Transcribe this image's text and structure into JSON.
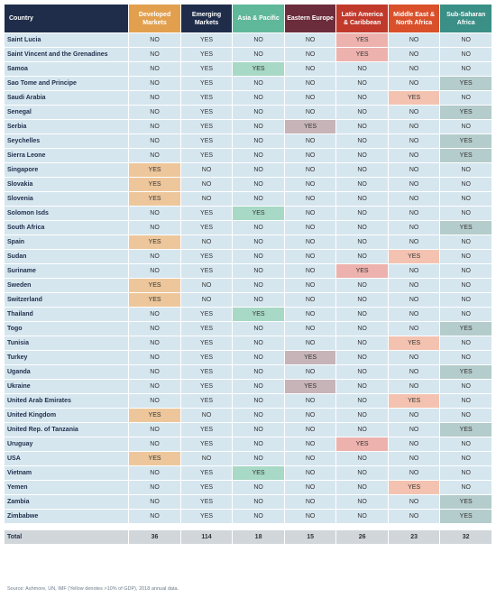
{
  "columns": [
    {
      "label": "Country",
      "bg": "#1f2d4a",
      "yes_color": null
    },
    {
      "label": "Developed Markets",
      "bg": "#e2a04f",
      "yes_color": "#edc79b"
    },
    {
      "label": "Emerging Markets",
      "bg": "#1f2d4a",
      "yes_color": null
    },
    {
      "label": "Asia & Pacific",
      "bg": "#5fb89a",
      "yes_color": "#a8d8c6"
    },
    {
      "label": "Eastern Europe",
      "bg": "#6b2c3b",
      "yes_color": "#c6b4b8"
    },
    {
      "label": "Latin America & Caribbean",
      "bg": "#c0392b",
      "yes_color": "#edb2ad"
    },
    {
      "label": "Middle East & North Africa",
      "bg": "#d9502b",
      "yes_color": "#f4c2b0"
    },
    {
      "label": "Sub-Saharan Africa",
      "bg": "#3a8f86",
      "yes_color": "#b4cccb"
    }
  ],
  "rows": [
    {
      "country": "Saint Lucia",
      "values": [
        "NO",
        "YES",
        "NO",
        "NO",
        "YES",
        "NO",
        "NO"
      ]
    },
    {
      "country": "Saint Vincent and the Grenadines",
      "values": [
        "NO",
        "YES",
        "NO",
        "NO",
        "YES",
        "NO",
        "NO"
      ]
    },
    {
      "country": "Samoa",
      "values": [
        "NO",
        "YES",
        "YES",
        "NO",
        "NO",
        "NO",
        "NO"
      ]
    },
    {
      "country": "Sao Tome and Principe",
      "values": [
        "NO",
        "YES",
        "NO",
        "NO",
        "NO",
        "NO",
        "YES"
      ]
    },
    {
      "country": "Saudi Arabia",
      "values": [
        "NO",
        "YES",
        "NO",
        "NO",
        "NO",
        "YES",
        "NO"
      ]
    },
    {
      "country": "Senegal",
      "values": [
        "NO",
        "YES",
        "NO",
        "NO",
        "NO",
        "NO",
        "YES"
      ]
    },
    {
      "country": "Serbia",
      "values": [
        "NO",
        "YES",
        "NO",
        "YES",
        "NO",
        "NO",
        "NO"
      ]
    },
    {
      "country": "Seychelles",
      "values": [
        "NO",
        "YES",
        "NO",
        "NO",
        "NO",
        "NO",
        "YES"
      ]
    },
    {
      "country": "Sierra Leone",
      "values": [
        "NO",
        "YES",
        "NO",
        "NO",
        "NO",
        "NO",
        "YES"
      ]
    },
    {
      "country": "Singapore",
      "values": [
        "YES",
        "NO",
        "NO",
        "NO",
        "NO",
        "NO",
        "NO"
      ]
    },
    {
      "country": "Slovakia",
      "values": [
        "YES",
        "NO",
        "NO",
        "NO",
        "NO",
        "NO",
        "NO"
      ]
    },
    {
      "country": "Slovenia",
      "values": [
        "YES",
        "NO",
        "NO",
        "NO",
        "NO",
        "NO",
        "NO"
      ]
    },
    {
      "country": "Solomon Isds",
      "values": [
        "NO",
        "YES",
        "YES",
        "NO",
        "NO",
        "NO",
        "NO"
      ]
    },
    {
      "country": "South Africa",
      "values": [
        "NO",
        "YES",
        "NO",
        "NO",
        "NO",
        "NO",
        "YES"
      ]
    },
    {
      "country": "Spain",
      "values": [
        "YES",
        "NO",
        "NO",
        "NO",
        "NO",
        "NO",
        "NO"
      ]
    },
    {
      "country": "Sudan",
      "values": [
        "NO",
        "YES",
        "NO",
        "NO",
        "NO",
        "YES",
        "NO"
      ]
    },
    {
      "country": "Suriname",
      "values": [
        "NO",
        "YES",
        "NO",
        "NO",
        "YES",
        "NO",
        "NO"
      ]
    },
    {
      "country": "Sweden",
      "values": [
        "YES",
        "NO",
        "NO",
        "NO",
        "NO",
        "NO",
        "NO"
      ]
    },
    {
      "country": "Switzerland",
      "values": [
        "YES",
        "NO",
        "NO",
        "NO",
        "NO",
        "NO",
        "NO"
      ]
    },
    {
      "country": "Thailand",
      "values": [
        "NO",
        "YES",
        "YES",
        "NO",
        "NO",
        "NO",
        "NO"
      ]
    },
    {
      "country": "Togo",
      "values": [
        "NO",
        "YES",
        "NO",
        "NO",
        "NO",
        "NO",
        "YES"
      ]
    },
    {
      "country": "Tunisia",
      "values": [
        "NO",
        "YES",
        "NO",
        "NO",
        "NO",
        "YES",
        "NO"
      ]
    },
    {
      "country": "Turkey",
      "values": [
        "NO",
        "YES",
        "NO",
        "YES",
        "NO",
        "NO",
        "NO"
      ]
    },
    {
      "country": "Uganda",
      "values": [
        "NO",
        "YES",
        "NO",
        "NO",
        "NO",
        "NO",
        "YES"
      ]
    },
    {
      "country": "Ukraine",
      "values": [
        "NO",
        "YES",
        "NO",
        "YES",
        "NO",
        "NO",
        "NO"
      ]
    },
    {
      "country": "United Arab Emirates",
      "values": [
        "NO",
        "YES",
        "NO",
        "NO",
        "NO",
        "YES",
        "NO"
      ]
    },
    {
      "country": "United Kingdom",
      "values": [
        "YES",
        "NO",
        "NO",
        "NO",
        "NO",
        "NO",
        "NO"
      ]
    },
    {
      "country": "United Rep. of Tanzania",
      "values": [
        "NO",
        "YES",
        "NO",
        "NO",
        "NO",
        "NO",
        "YES"
      ]
    },
    {
      "country": "Uruguay",
      "values": [
        "NO",
        "YES",
        "NO",
        "NO",
        "YES",
        "NO",
        "NO"
      ]
    },
    {
      "country": "USA",
      "values": [
        "YES",
        "NO",
        "NO",
        "NO",
        "NO",
        "NO",
        "NO"
      ]
    },
    {
      "country": "Vietnam",
      "values": [
        "NO",
        "YES",
        "YES",
        "NO",
        "NO",
        "NO",
        "NO"
      ]
    },
    {
      "country": "Yemen",
      "values": [
        "NO",
        "YES",
        "NO",
        "NO",
        "NO",
        "YES",
        "NO"
      ]
    },
    {
      "country": "Zambia",
      "values": [
        "NO",
        "YES",
        "NO",
        "NO",
        "NO",
        "NO",
        "YES"
      ]
    },
    {
      "country": "Zimbabwe",
      "values": [
        "NO",
        "YES",
        "NO",
        "NO",
        "NO",
        "NO",
        "YES"
      ]
    }
  ],
  "total": {
    "label": "Total",
    "values": [
      "36",
      "114",
      "18",
      "15",
      "26",
      "23",
      "32"
    ]
  },
  "source": "Source: Ashmore, UN, IMF (Yellow denotes >10% of GDP), 2018 annual data."
}
